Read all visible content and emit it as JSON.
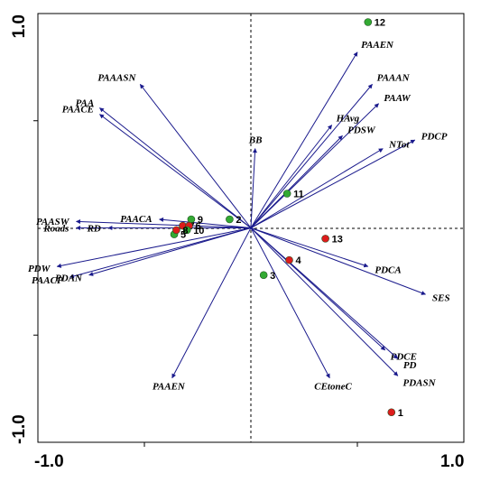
{
  "chart_data": {
    "type": "scatter",
    "subtype": "biplot",
    "xlim": [
      -1.0,
      1.0
    ],
    "ylim": [
      -1.0,
      1.0
    ],
    "x_tick_labels": [
      "-1.0",
      "1.0"
    ],
    "y_tick_labels": [
      "1.0",
      "-1.0"
    ],
    "origin_lines": "dashed",
    "colors": {
      "arrow": "#1a1a8c",
      "site_green": "#33aa33",
      "site_red": "#dd1c1c",
      "axis": "#000000"
    },
    "vectors": [
      {
        "label": "PAAEN",
        "x": 0.5,
        "y": 0.82
      },
      {
        "label": "PAAAN",
        "x": 0.57,
        "y": 0.67
      },
      {
        "label": "PAAW",
        "x": 0.6,
        "y": 0.58
      },
      {
        "label": "HAvg",
        "x": 0.38,
        "y": 0.48
      },
      {
        "label": "PDSW",
        "x": 0.43,
        "y": 0.43
      },
      {
        "label": "PDCP",
        "x": 0.77,
        "y": 0.41
      },
      {
        "label": "NTot",
        "x": 0.62,
        "y": 0.37
      },
      {
        "label": "BB",
        "x": 0.02,
        "y": 0.37
      },
      {
        "label": "PAAASN",
        "x": -0.52,
        "y": 0.67
      },
      {
        "label": "PAA",
        "x": -0.71,
        "y": 0.56
      },
      {
        "label": "PAACE",
        "x": -0.71,
        "y": 0.53
      },
      {
        "label": "PAACA",
        "x": -0.43,
        "y": 0.04
      },
      {
        "label": "PAASW",
        "x": -0.82,
        "y": 0.03
      },
      {
        "label": "Roads",
        "x": -0.82,
        "y": 0.0
      },
      {
        "label": "RD",
        "x": -0.67,
        "y": 0.0
      },
      {
        "label": "PDW",
        "x": -0.91,
        "y": -0.18
      },
      {
        "label": "PAACP",
        "x": -0.85,
        "y": -0.23
      },
      {
        "label": "PDAN",
        "x": -0.76,
        "y": -0.22
      },
      {
        "label": "PDCA",
        "x": 0.55,
        "y": -0.18
      },
      {
        "label": "SES",
        "x": 0.82,
        "y": -0.31
      },
      {
        "label": "PDCE",
        "x": 0.63,
        "y": -0.57
      },
      {
        "label": "PD",
        "x": 0.69,
        "y": -0.61
      },
      {
        "label": "PDASN",
        "x": 0.69,
        "y": -0.69
      },
      {
        "label": "CEtoneC",
        "x": 0.37,
        "y": -0.7
      },
      {
        "label": "PAAEN",
        "x": -0.37,
        "y": -0.7
      }
    ],
    "sites": [
      {
        "label": "12",
        "x": 0.55,
        "y": 0.96,
        "group": "green"
      },
      {
        "label": "11",
        "x": 0.17,
        "y": 0.16,
        "group": "green"
      },
      {
        "label": "2",
        "x": -0.1,
        "y": 0.04,
        "group": "green"
      },
      {
        "label": "9",
        "x": -0.28,
        "y": 0.04,
        "group": "green"
      },
      {
        "label": "7",
        "x": -0.32,
        "y": 0.01,
        "group": "red"
      },
      {
        "label": "6",
        "x": -0.29,
        "y": 0.01,
        "group": "red"
      },
      {
        "label": "10",
        "x": -0.3,
        "y": -0.01,
        "group": "green"
      },
      {
        "label": "5",
        "x": -0.36,
        "y": -0.03,
        "group": "green"
      },
      {
        "label": "8",
        "x": -0.35,
        "y": -0.01,
        "group": "red"
      },
      {
        "label": "13",
        "x": 0.35,
        "y": -0.05,
        "group": "red"
      },
      {
        "label": "4",
        "x": 0.18,
        "y": -0.15,
        "group": "red"
      },
      {
        "label": "3",
        "x": 0.06,
        "y": -0.22,
        "group": "green"
      },
      {
        "label": "1",
        "x": 0.66,
        "y": -0.86,
        "group": "red"
      }
    ]
  }
}
